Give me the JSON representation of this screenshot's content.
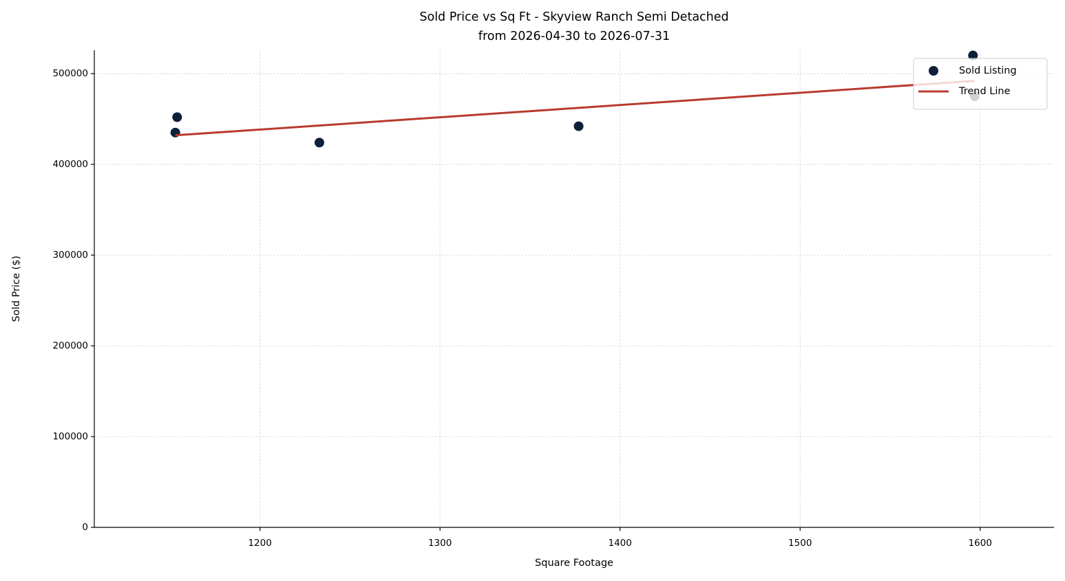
{
  "chart_data": {
    "type": "scatter",
    "title": "Sold Price vs Sq Ft - Skyview Ranch Semi Detached",
    "subtitle": "from 2026-04-30 to 2026-07-31",
    "x_label": "Square Footage",
    "y_label": "Sold Price ($)",
    "series": [
      {
        "name": "Sold Listing",
        "type": "scatter",
        "color": "#0d1f3a",
        "x": [
          1153,
          1154,
          1233,
          1377,
          1596,
          1597
        ],
        "values": [
          435000,
          452000,
          424000,
          442000,
          520000,
          475000
        ]
      },
      {
        "name": "Trend Line",
        "type": "line",
        "color": "#b83a2e",
        "x": [
          1153,
          1597
        ],
        "values": [
          432000,
          492000
        ]
      }
    ],
    "xlim": [
      1108,
      1641
    ],
    "ylim": [
      0,
      525800
    ],
    "xticks": [
      1200,
      1300,
      1400,
      1500,
      1600
    ],
    "yticks": [
      0,
      100000,
      200000,
      300000,
      400000,
      500000
    ],
    "grid": true,
    "legend": "upper right"
  }
}
